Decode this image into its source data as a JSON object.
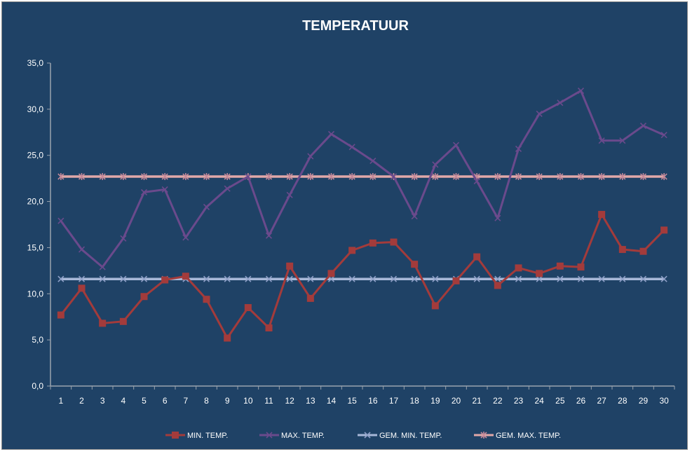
{
  "chart_data": {
    "type": "line",
    "title": "TEMPERATUUR",
    "xlabel": "",
    "ylabel": "",
    "ylim": [
      0,
      35
    ],
    "yticks": [
      "0,0",
      "5,0",
      "10,0",
      "15,0",
      "20,0",
      "25,0",
      "30,0",
      "35,0"
    ],
    "categories": [
      "1",
      "2",
      "3",
      "4",
      "5",
      "6",
      "7",
      "8",
      "9",
      "10",
      "11",
      "12",
      "13",
      "14",
      "15",
      "16",
      "17",
      "18",
      "19",
      "20",
      "21",
      "22",
      "23",
      "24",
      "25",
      "26",
      "27",
      "28",
      "29",
      "30"
    ],
    "grid": false,
    "legend_position": "bottom",
    "series": [
      {
        "name": "MIN. TEMP.",
        "color": "#a33b3b",
        "marker": "square",
        "values": [
          7.7,
          10.6,
          6.8,
          7.0,
          9.7,
          11.5,
          11.9,
          9.4,
          5.2,
          8.5,
          6.3,
          13.0,
          9.5,
          12.2,
          14.7,
          15.5,
          15.6,
          13.2,
          8.7,
          11.4,
          14.0,
          10.9,
          12.8,
          12.2,
          13.0,
          12.9,
          18.6,
          14.8,
          14.6,
          16.9
        ]
      },
      {
        "name": "MAX. TEMP.",
        "color": "#6a4a8c",
        "marker": "x",
        "values": [
          17.9,
          14.8,
          12.9,
          16.0,
          21.0,
          21.3,
          16.1,
          19.4,
          21.4,
          22.7,
          16.3,
          20.7,
          24.9,
          27.3,
          25.9,
          24.4,
          22.7,
          18.4,
          24.0,
          26.1,
          22.2,
          18.2,
          25.7,
          29.5,
          30.7,
          32.0,
          26.6,
          26.6,
          28.2,
          27.2
        ]
      },
      {
        "name": "GEM. MIN. TEMP.",
        "color": "#a8b8d8",
        "marker": "x",
        "values": [
          11.6,
          11.6,
          11.6,
          11.6,
          11.6,
          11.6,
          11.6,
          11.6,
          11.6,
          11.6,
          11.6,
          11.6,
          11.6,
          11.6,
          11.6,
          11.6,
          11.6,
          11.6,
          11.6,
          11.6,
          11.6,
          11.6,
          11.6,
          11.6,
          11.6,
          11.6,
          11.6,
          11.6,
          11.6,
          11.6
        ]
      },
      {
        "name": "GEM. MAX. TEMP.",
        "color": "#e0a8a8",
        "marker": "asterisk",
        "values": [
          22.7,
          22.7,
          22.7,
          22.7,
          22.7,
          22.7,
          22.7,
          22.7,
          22.7,
          22.7,
          22.7,
          22.7,
          22.7,
          22.7,
          22.7,
          22.7,
          22.7,
          22.7,
          22.7,
          22.7,
          22.7,
          22.7,
          22.7,
          22.7,
          22.7,
          22.7,
          22.7,
          22.7,
          22.7,
          22.7
        ]
      }
    ]
  }
}
